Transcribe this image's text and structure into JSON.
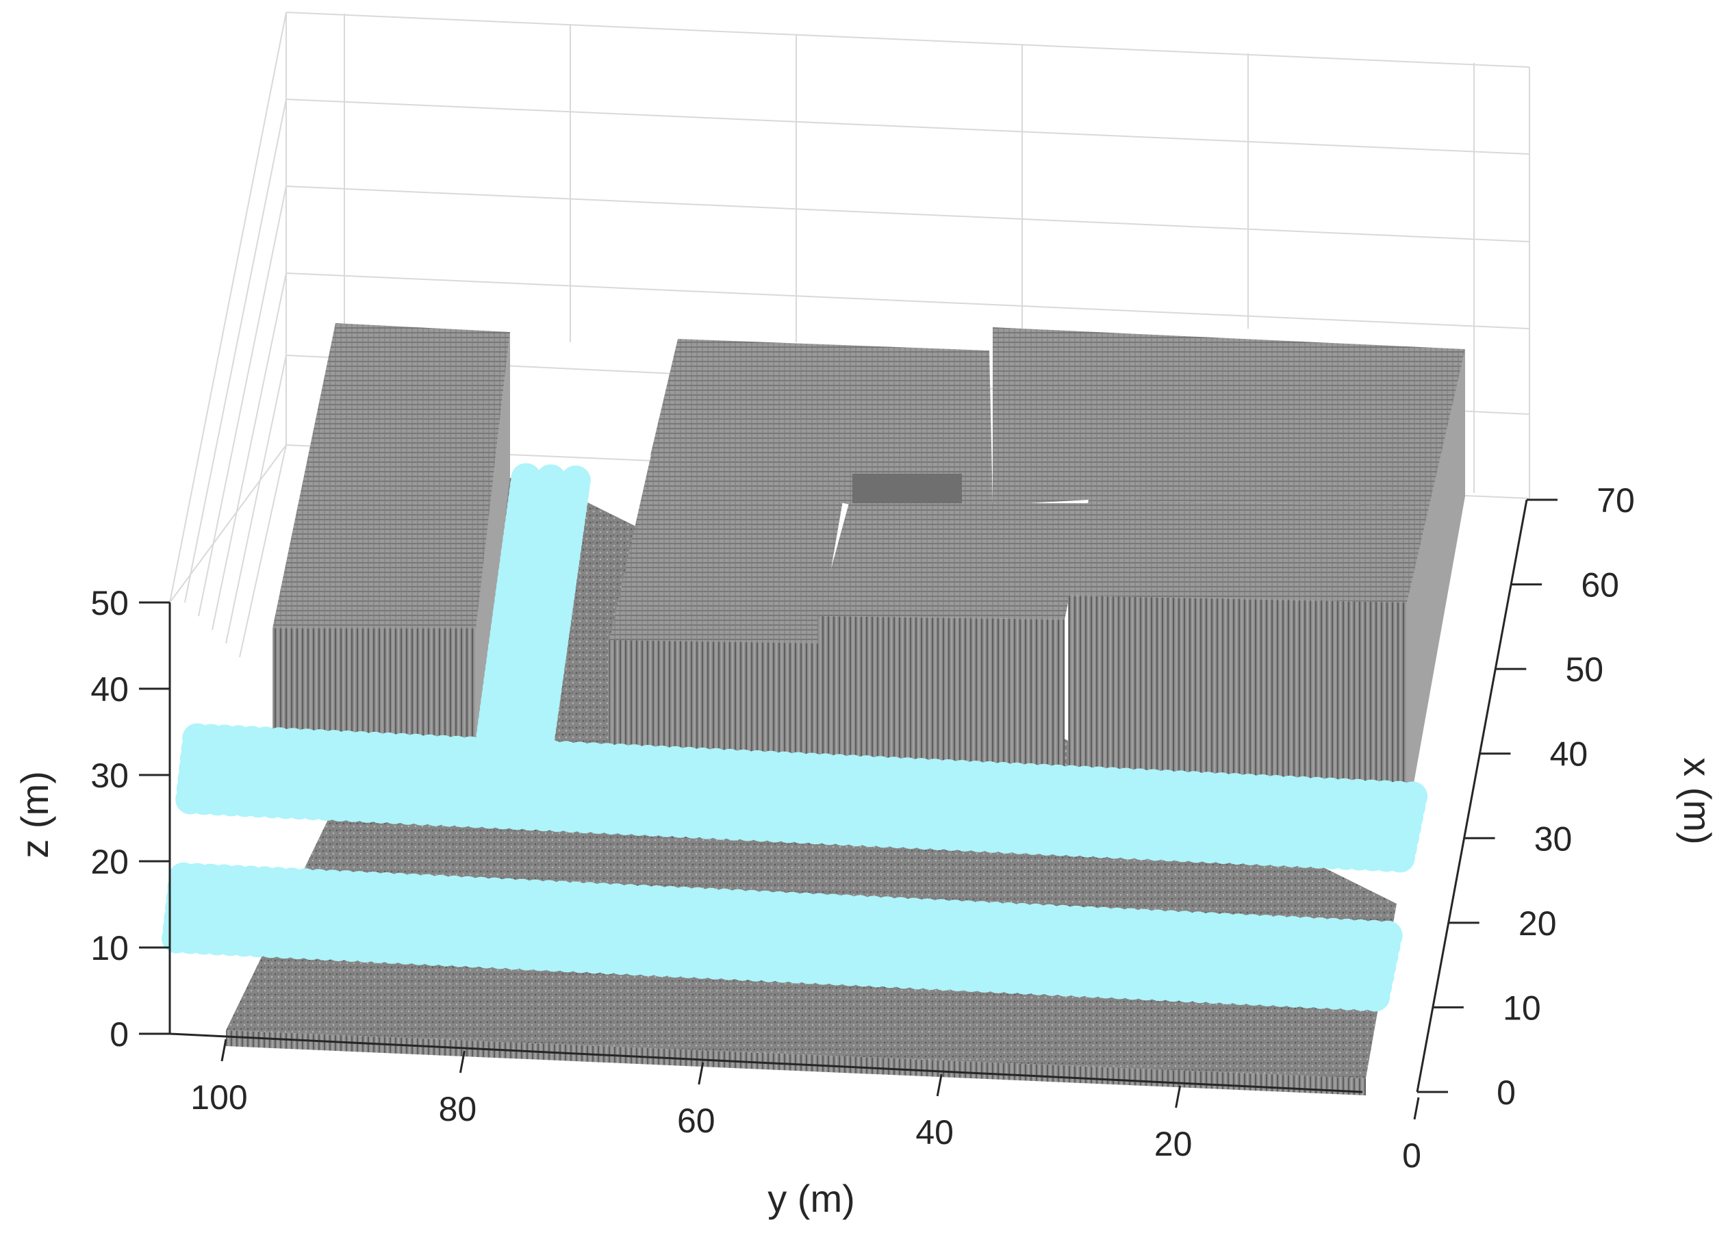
{
  "chart_data": {
    "type": "scatter",
    "subtype": "3d-point-cloud",
    "title": "",
    "xlabel": "y (m)",
    "ylabel": "x (m)",
    "zlabel": "z (m)",
    "y_ticks": [
      "100",
      "80",
      "60",
      "40",
      "20",
      "0"
    ],
    "x_ticks": [
      "0",
      "10",
      "20",
      "30",
      "40",
      "50",
      "60",
      "70"
    ],
    "z_ticks": [
      "0",
      "10",
      "20",
      "30",
      "40",
      "50"
    ],
    "ylim": [
      0,
      100
    ],
    "xlim": [
      0,
      70
    ],
    "zlim": [
      0,
      50
    ],
    "grid": true,
    "colors": {
      "building": "#8c8c8c",
      "building_top": "#9a9a9a",
      "building_side": "#a3a3a3",
      "ground": "#7a7a7a",
      "path": "#aef4fa",
      "axis": "#262626",
      "grid": "#d9d9d9"
    },
    "series": [
      {
        "name": "",
        "role": "obstacle",
        "color": "#8c8c8c",
        "blocks": [
          {
            "label": "building-left",
            "y": [
              84,
              100
            ],
            "x": [
              34,
              66
            ],
            "z": [
              0,
              24
            ]
          },
          {
            "label": "building-center-left",
            "y": [
              50,
              70
            ],
            "x": [
              36,
              50
            ],
            "z": [
              0,
              24
            ]
          },
          {
            "label": "building-center-rear",
            "y": [
              30,
              70
            ],
            "x": [
              50,
              66
            ],
            "z": [
              0,
              20
            ]
          },
          {
            "label": "building-center-mid",
            "y": [
              26,
              50
            ],
            "x": [
              36,
              52
            ],
            "z": [
              0,
              22
            ]
          },
          {
            "label": "building-right",
            "y": [
              0,
              28
            ],
            "x": [
              36,
              70
            ],
            "z": [
              0,
              24
            ]
          },
          {
            "label": "ground-layer",
            "y": [
              0,
              100
            ],
            "x": [
              0,
              70
            ],
            "z": [
              0,
              1
            ]
          }
        ]
      },
      {
        "name": "",
        "role": "path",
        "color": "#aef4fa",
        "segments": [
          {
            "label": "corridor-front",
            "y": [
              0,
              100
            ],
            "x": [
              8,
              16
            ],
            "z": 4
          },
          {
            "label": "corridor-middle",
            "y": [
              0,
              100
            ],
            "x": [
              24,
              32
            ],
            "z": 6
          },
          {
            "label": "corridor-branch",
            "y": [
              72,
              76
            ],
            "x": [
              28,
              68
            ],
            "z": 6
          }
        ]
      }
    ]
  }
}
